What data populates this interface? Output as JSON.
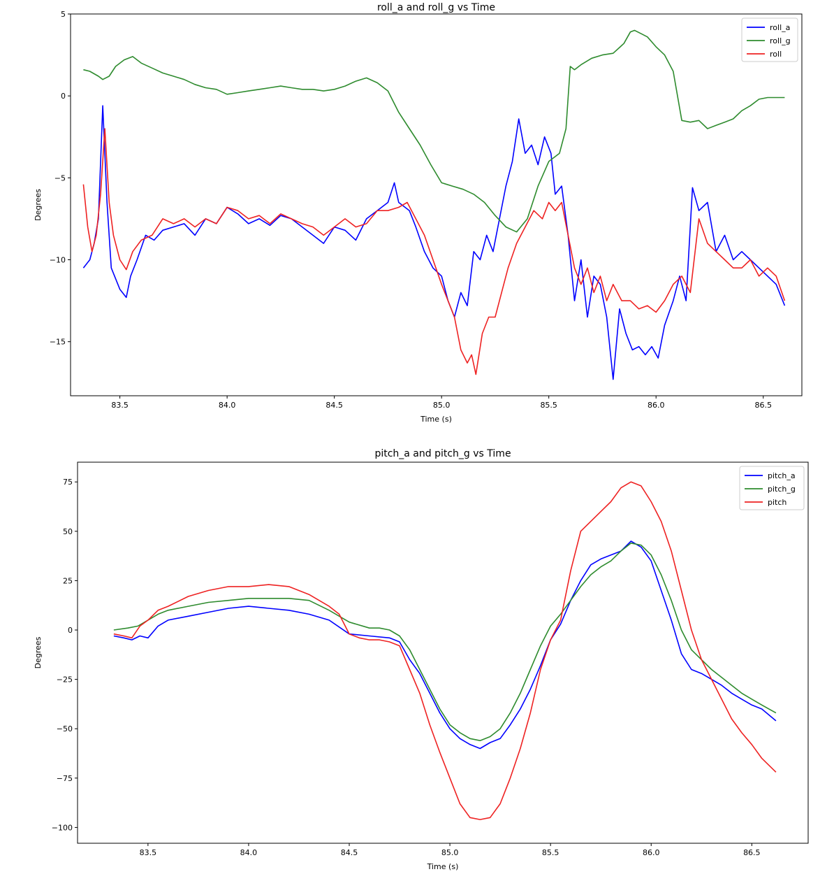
{
  "chart_data": [
    {
      "type": "line",
      "title": "roll_a and roll_g vs Time",
      "xlabel": "Time (s)",
      "ylabel": "Degrees",
      "xlim": [
        83.27,
        86.68
      ],
      "ylim": [
        -18.3,
        5.0
      ],
      "xticks": [
        83.5,
        84.0,
        84.5,
        85.0,
        85.5,
        86.0,
        86.5
      ],
      "xtick_labels": [
        "83.5",
        "84.0",
        "84.5",
        "85.0",
        "85.5",
        "86.0",
        "86.5"
      ],
      "yticks": [
        5,
        0,
        -5,
        -10,
        -15
      ],
      "ytick_labels": [
        "5",
        "0",
        "−5",
        "−10",
        "−15"
      ],
      "grid": false,
      "legend_position": "top-right",
      "series": [
        {
          "name": "roll_a",
          "color": "#0000ff",
          "x": [
            83.33,
            83.36,
            83.38,
            83.4,
            83.42,
            83.44,
            83.46,
            83.5,
            83.53,
            83.55,
            83.58,
            83.62,
            83.66,
            83.7,
            83.75,
            83.8,
            83.85,
            83.9,
            83.95,
            84.0,
            84.05,
            84.1,
            84.15,
            84.2,
            84.25,
            84.3,
            84.35,
            84.4,
            84.45,
            84.5,
            84.55,
            84.6,
            84.65,
            84.7,
            84.75,
            84.78,
            84.8,
            84.85,
            84.88,
            84.92,
            84.96,
            85.0,
            85.03,
            85.06,
            85.09,
            85.12,
            85.15,
            85.18,
            85.21,
            85.24,
            85.27,
            85.3,
            85.33,
            85.36,
            85.39,
            85.42,
            85.45,
            85.48,
            85.51,
            85.53,
            85.56,
            85.59,
            85.62,
            85.65,
            85.68,
            85.71,
            85.74,
            85.77,
            85.8,
            85.83,
            85.86,
            85.89,
            85.92,
            85.95,
            85.98,
            86.01,
            86.04,
            86.08,
            86.11,
            86.14,
            86.17,
            86.2,
            86.24,
            86.28,
            86.32,
            86.36,
            86.4,
            86.44,
            86.48,
            86.52,
            86.56,
            86.6
          ],
          "y": [
            -10.5,
            -10.0,
            -9.0,
            -7.5,
            -0.6,
            -6.5,
            -10.5,
            -11.8,
            -12.3,
            -11.0,
            -10.0,
            -8.5,
            -8.8,
            -8.2,
            -8.0,
            -7.8,
            -8.5,
            -7.5,
            -7.8,
            -6.8,
            -7.2,
            -7.8,
            -7.5,
            -7.9,
            -7.3,
            -7.5,
            -8.0,
            -8.5,
            -9.0,
            -8.0,
            -8.2,
            -8.8,
            -7.5,
            -7.0,
            -6.5,
            -5.3,
            -6.5,
            -7.0,
            -8.0,
            -9.5,
            -10.5,
            -11.0,
            -12.5,
            -13.5,
            -12.0,
            -12.8,
            -9.5,
            -10.0,
            -8.5,
            -9.5,
            -7.5,
            -5.5,
            -4.0,
            -1.4,
            -3.5,
            -3.0,
            -4.2,
            -2.5,
            -3.5,
            -6.0,
            -5.5,
            -8.5,
            -12.5,
            -10.0,
            -13.5,
            -11.0,
            -11.5,
            -13.5,
            -17.3,
            -13.0,
            -14.5,
            -15.5,
            -15.3,
            -15.8,
            -15.3,
            -16.0,
            -14.0,
            -12.5,
            -11.0,
            -12.5,
            -5.6,
            -7.0,
            -6.5,
            -9.5,
            -8.5,
            -10.0,
            -9.5,
            -10.0,
            -10.5,
            -11.0,
            -11.5,
            -12.8
          ]
        },
        {
          "name": "roll_g",
          "color": "#2e8b2e",
          "x": [
            83.33,
            83.36,
            83.4,
            83.42,
            83.45,
            83.48,
            83.52,
            83.56,
            83.6,
            83.65,
            83.7,
            83.75,
            83.8,
            83.85,
            83.9,
            83.95,
            84.0,
            84.05,
            84.1,
            84.15,
            84.2,
            84.25,
            84.3,
            84.35,
            84.4,
            84.45,
            84.5,
            84.55,
            84.6,
            84.65,
            84.7,
            84.75,
            84.8,
            84.85,
            84.9,
            84.95,
            85.0,
            85.05,
            85.1,
            85.15,
            85.2,
            85.25,
            85.3,
            85.35,
            85.4,
            85.45,
            85.5,
            85.55,
            85.58,
            85.6,
            85.62,
            85.65,
            85.7,
            85.75,
            85.8,
            85.85,
            85.88,
            85.9,
            85.93,
            85.96,
            86.0,
            86.04,
            86.08,
            86.12,
            86.16,
            86.2,
            86.24,
            86.28,
            86.32,
            86.36,
            86.4,
            86.44,
            86.48,
            86.52,
            86.56,
            86.6
          ],
          "y": [
            1.6,
            1.5,
            1.2,
            1.0,
            1.2,
            1.8,
            2.2,
            2.4,
            2.0,
            1.7,
            1.4,
            1.2,
            1.0,
            0.7,
            0.5,
            0.4,
            0.1,
            0.2,
            0.3,
            0.4,
            0.5,
            0.6,
            0.5,
            0.4,
            0.4,
            0.3,
            0.4,
            0.6,
            0.9,
            1.1,
            0.8,
            0.3,
            -1.0,
            -2.0,
            -3.0,
            -4.2,
            -5.3,
            -5.5,
            -5.7,
            -6.0,
            -6.5,
            -7.3,
            -8.0,
            -8.3,
            -7.5,
            -5.5,
            -4.0,
            -3.5,
            -2.0,
            1.8,
            1.6,
            1.9,
            2.3,
            2.5,
            2.6,
            3.2,
            3.9,
            4.0,
            3.8,
            3.6,
            3.0,
            2.5,
            1.5,
            -1.5,
            -1.6,
            -1.5,
            -2.0,
            -1.8,
            -1.6,
            -1.4,
            -0.9,
            -0.6,
            -0.2,
            -0.1,
            -0.1,
            -0.1
          ]
        },
        {
          "name": "roll",
          "color": "#ee2222",
          "x": [
            83.33,
            83.35,
            83.37,
            83.39,
            83.41,
            83.43,
            83.45,
            83.47,
            83.5,
            83.53,
            83.56,
            83.6,
            83.65,
            83.7,
            83.75,
            83.8,
            83.85,
            83.9,
            83.95,
            84.0,
            84.05,
            84.1,
            84.15,
            84.2,
            84.25,
            84.3,
            84.35,
            84.4,
            84.45,
            84.5,
            84.55,
            84.6,
            84.65,
            84.7,
            84.75,
            84.8,
            84.84,
            84.88,
            84.92,
            84.96,
            85.0,
            85.03,
            85.06,
            85.09,
            85.12,
            85.14,
            85.16,
            85.19,
            85.22,
            85.25,
            85.28,
            85.31,
            85.35,
            85.39,
            85.43,
            85.47,
            85.5,
            85.53,
            85.56,
            85.59,
            85.62,
            85.65,
            85.68,
            85.71,
            85.74,
            85.77,
            85.8,
            85.84,
            85.88,
            85.92,
            85.96,
            86.0,
            86.04,
            86.08,
            86.12,
            86.16,
            86.2,
            86.24,
            86.28,
            86.32,
            86.36,
            86.4,
            86.44,
            86.48,
            86.52,
            86.56,
            86.6
          ],
          "y": [
            -5.4,
            -8.0,
            -9.5,
            -8.5,
            -6.0,
            -2.0,
            -6.5,
            -8.5,
            -10.0,
            -10.6,
            -9.5,
            -8.8,
            -8.5,
            -7.5,
            -7.8,
            -7.5,
            -8.0,
            -7.5,
            -7.8,
            -6.8,
            -7.0,
            -7.5,
            -7.3,
            -7.8,
            -7.2,
            -7.5,
            -7.8,
            -8.0,
            -8.5,
            -8.0,
            -7.5,
            -8.0,
            -7.8,
            -7.0,
            -7.0,
            -6.8,
            -6.5,
            -7.5,
            -8.5,
            -10.0,
            -11.5,
            -12.5,
            -13.5,
            -15.5,
            -16.3,
            -15.8,
            -17.0,
            -14.5,
            -13.5,
            -13.5,
            -12.0,
            -10.5,
            -9.0,
            -8.0,
            -7.0,
            -7.5,
            -6.5,
            -7.0,
            -6.5,
            -8.5,
            -10.5,
            -11.5,
            -10.5,
            -12.0,
            -11.0,
            -12.5,
            -11.5,
            -12.5,
            -12.5,
            -13.0,
            -12.8,
            -13.2,
            -12.5,
            -11.5,
            -11.0,
            -12.0,
            -7.5,
            -9.0,
            -9.5,
            -10.0,
            -10.5,
            -10.5,
            -10.0,
            -11.0,
            -10.5,
            -11.0,
            -12.5
          ]
        }
      ]
    },
    {
      "type": "line",
      "title": "pitch_a and pitch_g vs Time",
      "xlabel": "Time (s)",
      "ylabel": "Degrees",
      "xlim": [
        83.15,
        86.78
      ],
      "ylim": [
        -108,
        85
      ],
      "xticks": [
        83.5,
        84.0,
        84.5,
        85.0,
        85.5,
        86.0,
        86.5
      ],
      "xtick_labels": [
        "83.5",
        "84.0",
        "84.5",
        "85.0",
        "85.5",
        "86.0",
        "86.5"
      ],
      "yticks": [
        75,
        50,
        25,
        0,
        -25,
        -50,
        -75,
        -100
      ],
      "ytick_labels": [
        "75",
        "50",
        "25",
        "0",
        "−25",
        "−50",
        "−75",
        "−100"
      ],
      "grid": false,
      "legend_position": "top-right",
      "series": [
        {
          "name": "pitch_a",
          "color": "#0000ff",
          "x": [
            83.33,
            83.38,
            83.42,
            83.46,
            83.5,
            83.55,
            83.6,
            83.7,
            83.8,
            83.9,
            84.0,
            84.1,
            84.2,
            84.3,
            84.4,
            84.5,
            84.6,
            84.7,
            84.75,
            84.8,
            84.85,
            84.9,
            84.95,
            85.0,
            85.05,
            85.1,
            85.15,
            85.2,
            85.25,
            85.3,
            85.35,
            85.4,
            85.45,
            85.5,
            85.55,
            85.6,
            85.65,
            85.7,
            85.75,
            85.8,
            85.85,
            85.9,
            85.95,
            86.0,
            86.05,
            86.1,
            86.15,
            86.2,
            86.25,
            86.3,
            86.35,
            86.4,
            86.45,
            86.5,
            86.55,
            86.62
          ],
          "y": [
            -3,
            -4,
            -5,
            -3,
            -4,
            2,
            5,
            7,
            9,
            11,
            12,
            11,
            10,
            8,
            5,
            -2,
            -3,
            -4,
            -6,
            -15,
            -22,
            -32,
            -42,
            -50,
            -55,
            -58,
            -60,
            -57,
            -55,
            -48,
            -40,
            -30,
            -18,
            -5,
            3,
            15,
            25,
            33,
            36,
            38,
            40,
            45,
            42,
            35,
            20,
            5,
            -12,
            -20,
            -22,
            -25,
            -28,
            -32,
            -35,
            -38,
            -40,
            -46
          ]
        },
        {
          "name": "pitch_g",
          "color": "#2e8b2e",
          "x": [
            83.33,
            83.4,
            83.45,
            83.5,
            83.55,
            83.6,
            83.7,
            83.8,
            83.9,
            84.0,
            84.1,
            84.2,
            84.3,
            84.4,
            84.5,
            84.6,
            84.65,
            84.7,
            84.75,
            84.8,
            84.85,
            84.9,
            84.95,
            85.0,
            85.05,
            85.1,
            85.15,
            85.2,
            85.25,
            85.3,
            85.35,
            85.4,
            85.45,
            85.5,
            85.55,
            85.6,
            85.65,
            85.7,
            85.75,
            85.8,
            85.85,
            85.9,
            85.95,
            86.0,
            86.05,
            86.1,
            86.15,
            86.2,
            86.25,
            86.3,
            86.35,
            86.4,
            86.45,
            86.5,
            86.55,
            86.62
          ],
          "y": [
            0,
            1,
            2,
            5,
            8,
            10,
            12,
            14,
            15,
            16,
            16,
            16,
            15,
            10,
            4,
            1,
            1,
            0,
            -3,
            -10,
            -20,
            -30,
            -40,
            -48,
            -52,
            -55,
            -56,
            -54,
            -50,
            -42,
            -32,
            -20,
            -8,
            2,
            8,
            15,
            22,
            28,
            32,
            35,
            40,
            44,
            43,
            38,
            28,
            15,
            0,
            -10,
            -15,
            -20,
            -24,
            -28,
            -32,
            -35,
            -38,
            -42
          ]
        },
        {
          "name": "pitch",
          "color": "#ee2222",
          "x": [
            83.33,
            83.38,
            83.42,
            83.46,
            83.5,
            83.55,
            83.6,
            83.7,
            83.8,
            83.9,
            84.0,
            84.1,
            84.2,
            84.3,
            84.4,
            84.45,
            84.5,
            84.55,
            84.6,
            84.65,
            84.7,
            84.75,
            84.8,
            84.85,
            84.9,
            84.95,
            85.0,
            85.05,
            85.1,
            85.15,
            85.2,
            85.25,
            85.3,
            85.35,
            85.4,
            85.45,
            85.5,
            85.55,
            85.6,
            85.65,
            85.7,
            85.75,
            85.8,
            85.85,
            85.9,
            85.95,
            86.0,
            86.05,
            86.1,
            86.15,
            86.2,
            86.25,
            86.3,
            86.35,
            86.4,
            86.45,
            86.5,
            86.55,
            86.62
          ],
          "y": [
            -2,
            -3,
            -4,
            2,
            5,
            10,
            12,
            17,
            20,
            22,
            22,
            23,
            22,
            18,
            12,
            8,
            -2,
            -4,
            -5,
            -5,
            -6,
            -8,
            -20,
            -32,
            -48,
            -62,
            -75,
            -88,
            -95,
            -96,
            -95,
            -88,
            -75,
            -60,
            -42,
            -20,
            -5,
            5,
            30,
            50,
            55,
            60,
            65,
            72,
            75,
            73,
            65,
            55,
            40,
            20,
            0,
            -15,
            -25,
            -35,
            -45,
            -52,
            -58,
            -65,
            -72
          ]
        }
      ]
    }
  ]
}
